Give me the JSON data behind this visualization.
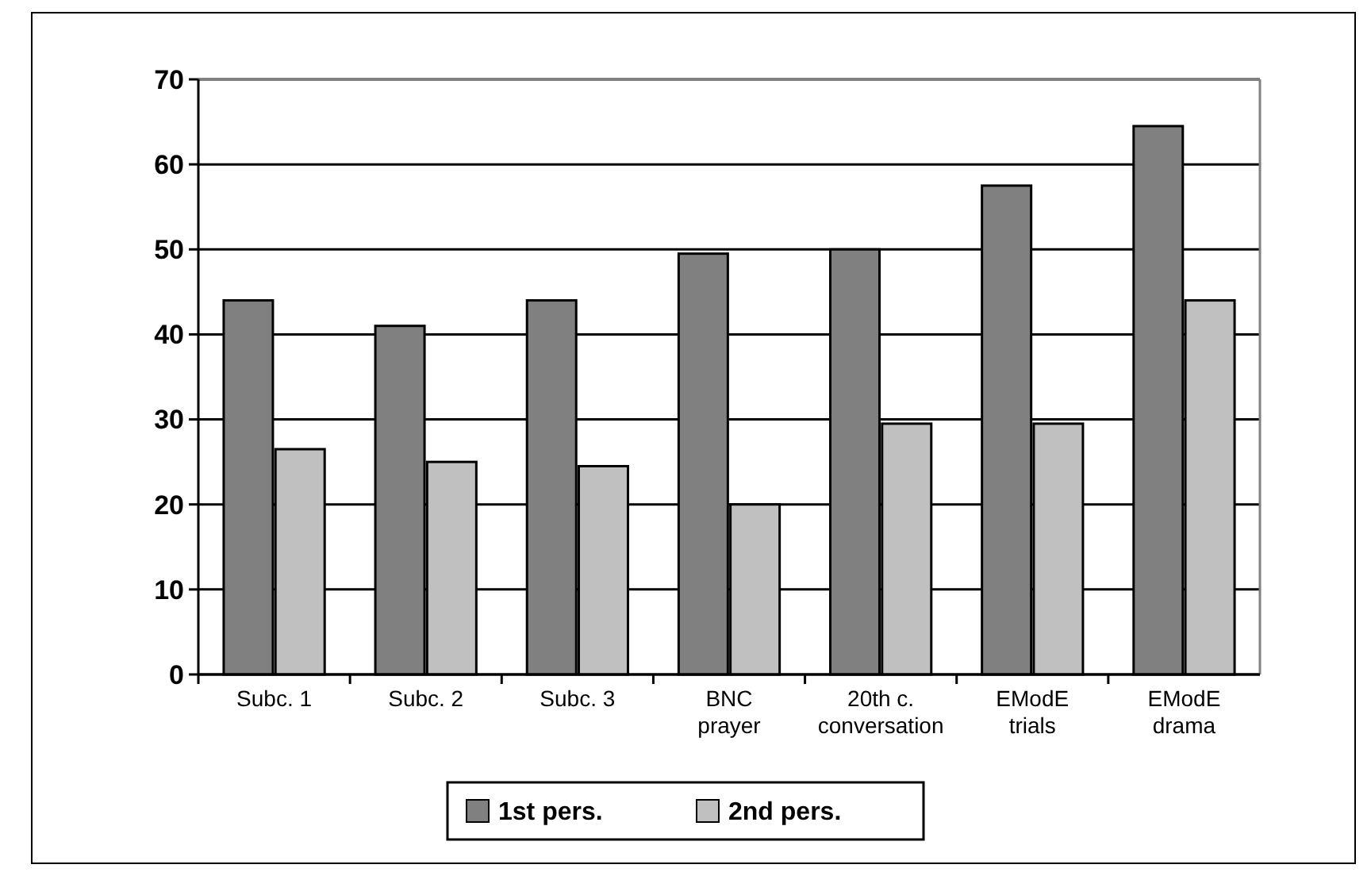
{
  "chart_data": {
    "type": "bar",
    "categories": [
      "Subc. 1",
      "Subc. 2",
      "Subc. 3",
      "BNC prayer",
      "20th c. conversation",
      "EModE trials",
      "EModE drama"
    ],
    "series": [
      {
        "name": "1st pers.",
        "color": "#808080",
        "values": [
          44,
          41,
          44,
          49.5,
          50,
          57.5,
          64.5
        ]
      },
      {
        "name": "2nd pers.",
        "color": "#c0c0c0",
        "values": [
          26.5,
          25,
          24.5,
          20,
          29.5,
          29.5,
          44
        ]
      }
    ],
    "ylim": [
      0,
      70
    ],
    "yticks": [
      0,
      10,
      20,
      30,
      40,
      50,
      60,
      70
    ],
    "grid": "y",
    "legend": "bottom"
  }
}
